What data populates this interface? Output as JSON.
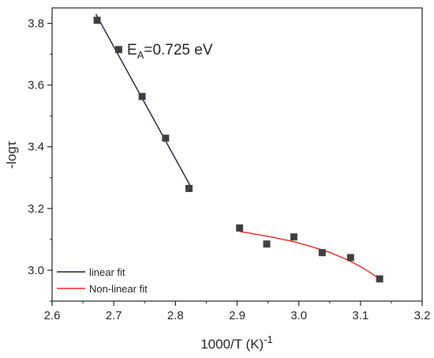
{
  "chart_data": {
    "type": "scatter",
    "xlabel_main": "1000/T (K)",
    "xlabel_exponent": "-1",
    "ylabel": "-logτ",
    "xlim": [
      2.6,
      3.2
    ],
    "ylim": [
      2.9,
      3.85
    ],
    "xticks": [
      "2.6",
      "2.7",
      "2.8",
      "2.9",
      "3.0",
      "3.1",
      "3.2"
    ],
    "yticks": [
      "3.0",
      "3.2",
      "3.4",
      "3.6",
      "3.8"
    ],
    "grid": false,
    "legend_position": "bottom-left",
    "annotation": {
      "main": "E",
      "subscript": "A",
      "rest": "=0.725 eV"
    },
    "series": [
      {
        "kind": "points",
        "marker": "square",
        "color": "#404040",
        "x": [
          2.673,
          2.708,
          2.746,
          2.784,
          2.822
        ],
        "y": [
          3.81,
          3.715,
          3.563,
          3.428,
          3.265
        ]
      },
      {
        "kind": "points",
        "marker": "square",
        "color": "#404040",
        "x": [
          2.904,
          2.948,
          2.992,
          3.038,
          3.084,
          3.131
        ],
        "y": [
          3.137,
          3.085,
          3.108,
          3.057,
          3.041,
          2.972
        ]
      },
      {
        "kind": "line",
        "name": "linear fit",
        "color": "#1a1a3a",
        "x": [
          2.671,
          2.825
        ],
        "y": [
          3.83,
          3.27
        ]
      },
      {
        "kind": "curve",
        "name": "Non-linear fit",
        "color": "#e8231f",
        "x": [
          2.904,
          2.93,
          2.96,
          2.99,
          3.02,
          3.05,
          3.08,
          3.105,
          3.131
        ],
        "y": [
          3.125,
          3.117,
          3.106,
          3.093,
          3.077,
          3.058,
          3.033,
          3.006,
          2.972
        ]
      }
    ]
  }
}
